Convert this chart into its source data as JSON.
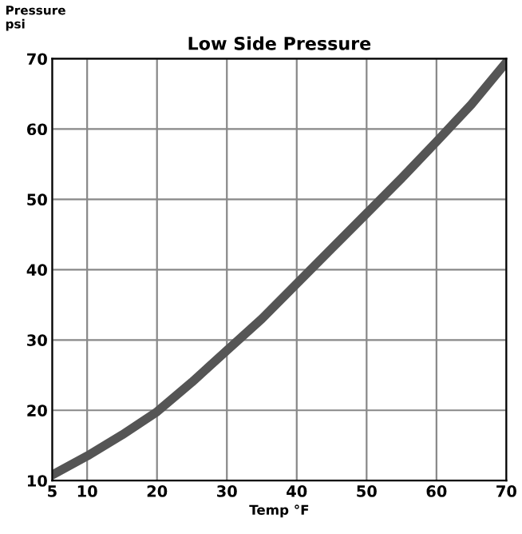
{
  "chart_data": {
    "type": "line",
    "title": "Low Side Pressure",
    "xlabel": "Temp °F",
    "ylabel": "Pressure\npsi",
    "x": [
      5,
      10,
      15,
      20,
      25,
      30,
      35,
      40,
      45,
      50,
      55,
      60,
      65,
      70
    ],
    "series": [
      {
        "color": "#555555",
        "values": [
          10.8,
          13.5,
          16.5,
          19.8,
          24,
          28.5,
          33,
          38,
          43,
          48,
          53,
          58.2,
          63.5,
          69.5
        ]
      }
    ],
    "xlim": [
      5,
      70
    ],
    "ylim": [
      10,
      70
    ],
    "xticks": [
      5,
      10,
      20,
      30,
      40,
      50,
      60,
      70
    ],
    "yticks": [
      10,
      20,
      30,
      40,
      50,
      60,
      70
    ],
    "grid": true,
    "marker": "none",
    "line_style": "solid"
  }
}
